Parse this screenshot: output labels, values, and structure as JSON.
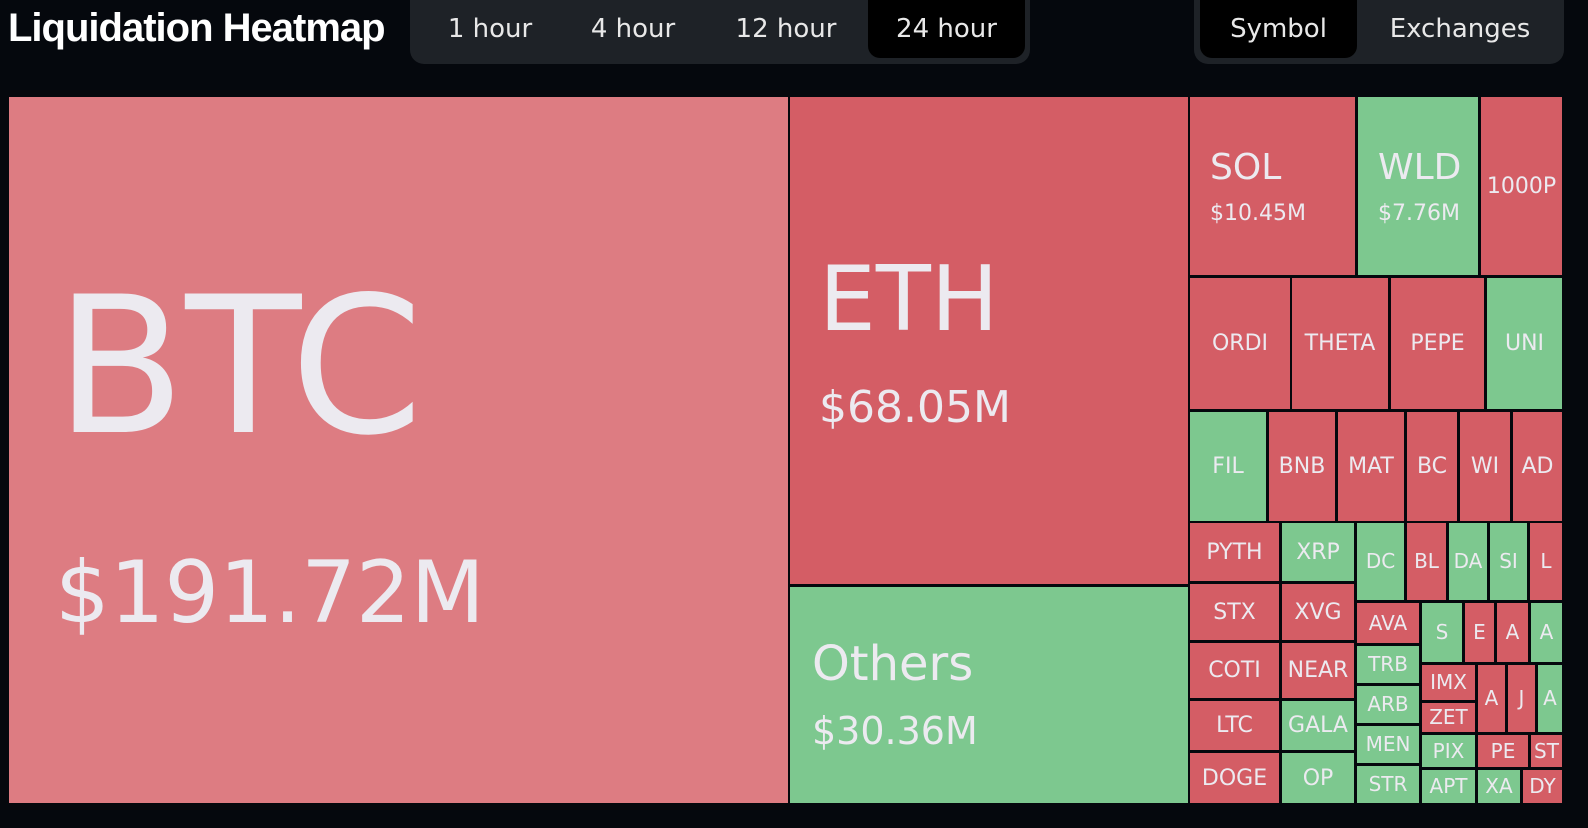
{
  "header": {
    "title": "Liquidation Heatmap"
  },
  "time_tabs": [
    "1 hour",
    "4 hour",
    "12 hour",
    "24 hour"
  ],
  "view_tabs": [
    "Symbol",
    "Exchanges"
  ],
  "heatmap": {
    "tiles": [
      {
        "label": "BTC",
        "value": "$191.72M"
      },
      {
        "label": "ETH",
        "value": "$68.05M"
      },
      {
        "label": "Others",
        "value": "$30.36M"
      },
      {
        "label": "SOL",
        "value": "$10.45M"
      },
      {
        "label": "WLD",
        "value": "$7.76M"
      },
      {
        "label": "1000P"
      },
      {
        "label": "ORDI"
      },
      {
        "label": "THETA"
      },
      {
        "label": "PEPE"
      },
      {
        "label": "UNI"
      },
      {
        "label": "FIL"
      },
      {
        "label": "BNB"
      },
      {
        "label": "MAT"
      },
      {
        "label": "BC"
      },
      {
        "label": "WI"
      },
      {
        "label": "AD"
      },
      {
        "label": "PYTH"
      },
      {
        "label": "STX"
      },
      {
        "label": "COTI"
      },
      {
        "label": "LTC"
      },
      {
        "label": "DOGE"
      },
      {
        "label": "XRP"
      },
      {
        "label": "XVG"
      },
      {
        "label": "NEAR"
      },
      {
        "label": "GALA"
      },
      {
        "label": "OP"
      },
      {
        "label": "DC"
      },
      {
        "label": "BL"
      },
      {
        "label": "DA"
      },
      {
        "label": "SI"
      },
      {
        "label": "L"
      },
      {
        "label": "AVA"
      },
      {
        "label": "TRB"
      },
      {
        "label": "ARB"
      },
      {
        "label": "MEN"
      },
      {
        "label": "STR"
      },
      {
        "label": "S"
      },
      {
        "label": "E"
      },
      {
        "label": "A"
      },
      {
        "label": "A"
      },
      {
        "label": "IMX"
      },
      {
        "label": "ZET"
      },
      {
        "label": "A"
      },
      {
        "label": "J"
      },
      {
        "label": "A"
      },
      {
        "label": "PIX"
      },
      {
        "label": "APT"
      },
      {
        "label": "PE"
      },
      {
        "label": "ST"
      },
      {
        "label": "XA"
      },
      {
        "label": "DY"
      }
    ]
  }
}
